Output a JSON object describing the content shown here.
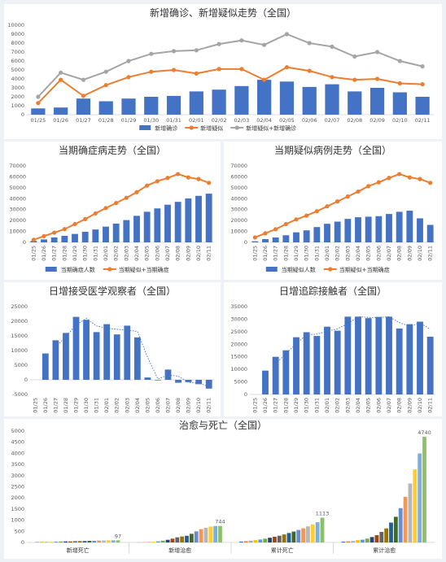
{
  "chart_data": [
    {
      "id": "c1",
      "type": "bar",
      "title": "新增确诊、新增疑似走势（全国）",
      "categories": [
        "01/25",
        "01/26",
        "01/27",
        "01/28",
        "01/29",
        "01/30",
        "01/31",
        "02/01",
        "02/02",
        "02/03",
        "02/04",
        "02/05",
        "02/06",
        "02/07",
        "02/08",
        "02/09",
        "02/10",
        "02/11"
      ],
      "ylim": [
        0,
        10000
      ],
      "yticks": [
        0,
        1000,
        2000,
        3000,
        4000,
        5000,
        6000,
        7000,
        8000,
        9000,
        10000
      ],
      "series": [
        {
          "name": "新增确诊",
          "kind": "bar",
          "color": "#4472c4",
          "values": [
            700,
            800,
            1800,
            1500,
            1800,
            2000,
            2100,
            2600,
            2800,
            3200,
            3900,
            3700,
            3100,
            3400,
            2600,
            3000,
            2500,
            2000
          ]
        },
        {
          "name": "新增疑似",
          "kind": "line",
          "color": "#ed7d31",
          "values": [
            1300,
            3900,
            2100,
            3300,
            4200,
            4800,
            5000,
            4600,
            5100,
            5100,
            3900,
            5300,
            4900,
            4200,
            3900,
            4000,
            3500,
            3400
          ]
        },
        {
          "name": "新增疑似+新增确诊",
          "kind": "line",
          "color": "#a5a5a5",
          "values": [
            2000,
            4700,
            3900,
            4800,
            6000,
            6800,
            7100,
            7200,
            7900,
            8300,
            7800,
            9000,
            8000,
            7600,
            6500,
            7000,
            6000,
            5400
          ]
        }
      ]
    },
    {
      "id": "c2",
      "type": "bar",
      "title": "当期确症病走势（全国）",
      "categories": [
        "01/25",
        "01/26",
        "01/27",
        "01/28",
        "01/29",
        "01/30",
        "01/31",
        "02/01",
        "02/02",
        "02/03",
        "02/04",
        "02/05",
        "02/06",
        "02/07",
        "02/08",
        "02/09",
        "02/10",
        "02/11"
      ],
      "ylim": [
        0,
        70000
      ],
      "yticks": [
        0,
        10000,
        20000,
        30000,
        40000,
        50000,
        60000,
        70000
      ],
      "series": [
        {
          "name": "当期确症人数",
          "kind": "bar",
          "color": "#4472c4",
          "values": [
            1300,
            2700,
            4500,
            6000,
            7700,
            9700,
            11800,
            14400,
            17200,
            20400,
            24300,
            28000,
            31100,
            34500,
            37100,
            40200,
            42600,
            44600
          ]
        },
        {
          "name": "当期疑似+当期确症",
          "kind": "line",
          "color": "#ed7d31",
          "values": [
            2300,
            5700,
            8900,
            12100,
            16700,
            21300,
            26500,
            31400,
            36000,
            40800,
            46000,
            52000,
            56000,
            59000,
            62500,
            59500,
            58000,
            54500
          ]
        }
      ]
    },
    {
      "id": "c3",
      "type": "bar",
      "title": "当期疑似病例走势（全国）",
      "categories": [
        "01/25",
        "01/26",
        "01/27",
        "01/28",
        "01/29",
        "01/30",
        "01/31",
        "02/01",
        "02/02",
        "02/03",
        "02/04",
        "02/05",
        "02/06",
        "02/07",
        "02/08",
        "02/09",
        "02/10",
        "02/11"
      ],
      "ylim": [
        0,
        70000
      ],
      "yticks": [
        0,
        10000,
        20000,
        30000,
        40000,
        50000,
        60000,
        70000
      ],
      "series": [
        {
          "name": "当期疑似人数",
          "kind": "bar",
          "color": "#4472c4",
          "values": [
            1000,
            3000,
            4500,
            6500,
            9200,
            11000,
            14000,
            17000,
            19000,
            21500,
            23000,
            23500,
            24000,
            26000,
            28000,
            29000,
            22000,
            16000
          ]
        },
        {
          "name": "当期疑似+当期确症",
          "kind": "line",
          "color": "#ed7d31",
          "values": [
            4500,
            8300,
            12000,
            16700,
            21000,
            24500,
            28500,
            33000,
            37500,
            42000,
            46500,
            51500,
            55000,
            59000,
            62500,
            59500,
            58000,
            54500
          ]
        }
      ]
    },
    {
      "id": "c4",
      "type": "bar",
      "title": "日增接受医学观察者（全国）",
      "categories": [
        "01/25",
        "01/26",
        "01/27",
        "01/28",
        "01/29",
        "01/30",
        "01/31",
        "02/01",
        "02/02",
        "02/03",
        "02/04",
        "02/05",
        "02/06",
        "02/07",
        "02/08",
        "02/09",
        "02/10",
        "02/11"
      ],
      "ylim": [
        -5000,
        25000
      ],
      "yticks": [
        -5000,
        0,
        5000,
        10000,
        15000,
        20000,
        25000
      ],
      "series": [
        {
          "name": "",
          "kind": "bar",
          "color": "#4472c4",
          "values": [
            0,
            9000,
            13500,
            16000,
            21500,
            20500,
            16300,
            19000,
            15500,
            18500,
            14500,
            800,
            -200,
            3500,
            -1000,
            -800,
            -1500,
            -3000
          ]
        }
      ],
      "trend": [
        null,
        null,
        11250,
        14750,
        18750,
        21000,
        18400,
        17650,
        17250,
        17000,
        16500,
        7650,
        300,
        1650,
        1250,
        -900,
        -1150,
        -2250
      ]
    },
    {
      "id": "c5",
      "type": "bar",
      "title": "日增追踪接触者（全国）",
      "categories": [
        "01/25",
        "01/26",
        "01/27",
        "01/28",
        "01/29",
        "01/30",
        "01/31",
        "02/01",
        "02/02",
        "02/03",
        "02/04",
        "02/05",
        "02/06",
        "02/07",
        "02/08",
        "02/09",
        "02/10",
        "02/11"
      ],
      "ylim": [
        0,
        35000
      ],
      "yticks": [
        0,
        5000,
        10000,
        15000,
        20000,
        25000,
        30000,
        35000
      ],
      "series": [
        {
          "name": "",
          "kind": "bar",
          "color": "#4472c4",
          "values": [
            0,
            9500,
            15000,
            17600,
            22800,
            24800,
            23300,
            27000,
            25400,
            31000,
            31000,
            30400,
            30900,
            31000,
            26300,
            28000,
            29000,
            23000
          ]
        }
      ],
      "trend": [
        null,
        null,
        12250,
        16300,
        20200,
        23800,
        24050,
        25150,
        26200,
        28200,
        31000,
        30700,
        30650,
        30950,
        28650,
        27150,
        28500,
        26000
      ]
    },
    {
      "id": "c6",
      "type": "bar",
      "title": "治愈与死亡（全国）",
      "ylim": [
        0,
        5000
      ],
      "yticks": [
        0,
        500,
        1000,
        1500,
        2000,
        2500,
        3000,
        3500,
        4000,
        4500,
        5000
      ],
      "groups": [
        {
          "name": "新增死亡",
          "label": "97",
          "values": [
            15,
            24,
            26,
            26,
            38,
            43,
            46,
            45,
            57,
            64,
            65,
            73,
            73,
            86,
            89,
            97,
            97,
            97
          ]
        },
        {
          "name": "新增治愈",
          "label": "744",
          "values": [
            5,
            10,
            20,
            30,
            50,
            80,
            120,
            170,
            230,
            270,
            300,
            390,
            500,
            600,
            660,
            716,
            740,
            744
          ]
        },
        {
          "name": "累计死亡",
          "label": "1113",
          "values": [
            41,
            56,
            80,
            106,
            132,
            170,
            213,
            259,
            304,
            361,
            425,
            490,
            563,
            636,
            722,
            811,
            908,
            1113
          ]
        },
        {
          "name": "累计治愈",
          "label": "4740",
          "values": [
            38,
            51,
            60,
            103,
            124,
            171,
            243,
            328,
            475,
            632,
            892,
            1153,
            1540,
            2050,
            2649,
            3281,
            3996,
            4740
          ]
        }
      ],
      "colors": [
        "#4472c4",
        "#ed7d31",
        "#a5a5a5",
        "#ffc000",
        "#5b9bd5",
        "#70ad47",
        "#264478",
        "#9e480e",
        "#636363",
        "#997300",
        "#255e91",
        "#43682b",
        "#698ed0",
        "#f1975a",
        "#b7b7b7",
        "#ffcd33",
        "#7cafdd",
        "#8cc168"
      ]
    }
  ]
}
